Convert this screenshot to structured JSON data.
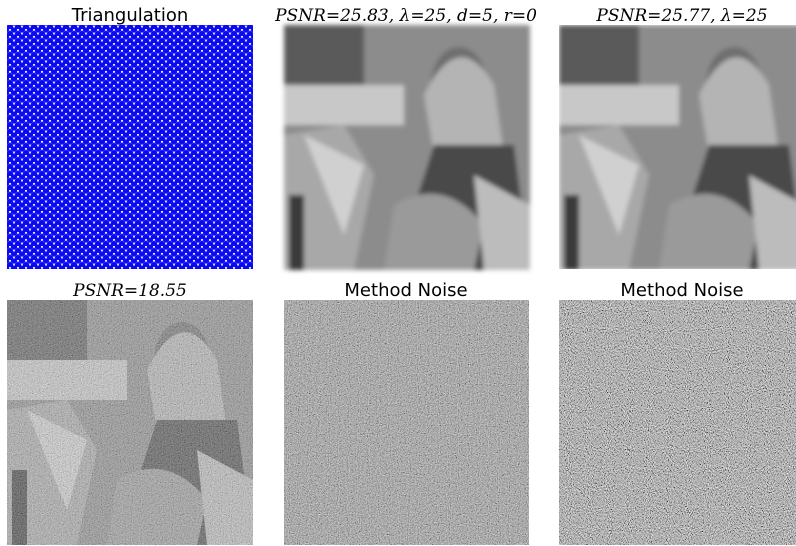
{
  "panels": [
    {
      "title": "Triangulation"
    },
    {
      "title": "PSNR=25.83, λ=25, d=5, r=0"
    },
    {
      "title": "PSNR=25.77, λ=25"
    },
    {
      "title": "PSNR=18.55"
    },
    {
      "title": "Method Noise"
    },
    {
      "title": "Method Noise"
    }
  ]
}
